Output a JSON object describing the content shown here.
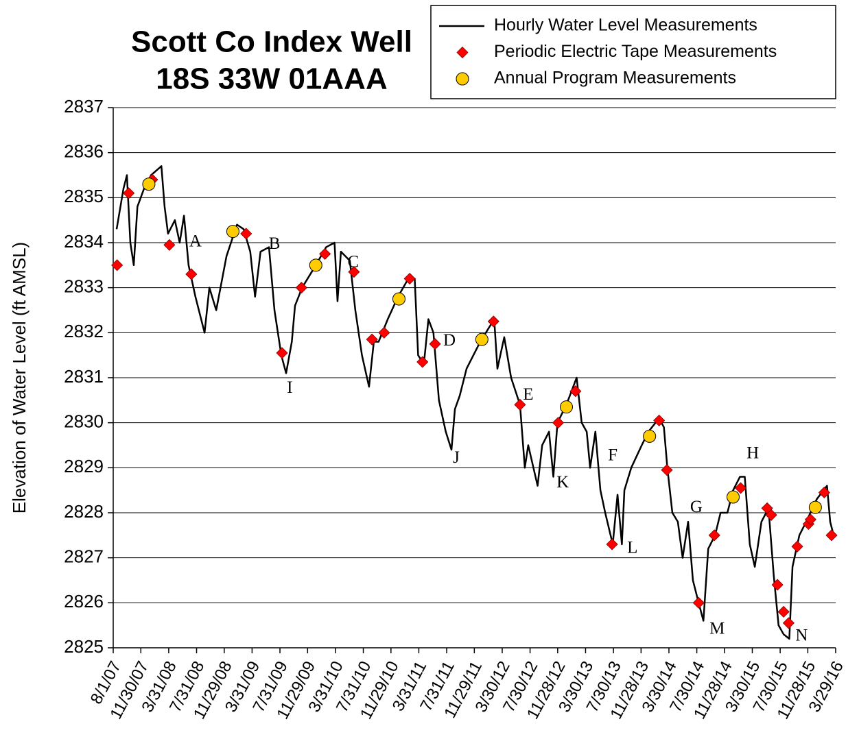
{
  "chart_data": {
    "type": "line",
    "title": [
      "Scott Co Index Well",
      "18S 33W 01AAA"
    ],
    "y_label": "Elevation of Water Level (ft AMSL)",
    "ylim": [
      2825,
      2837
    ],
    "yticks": [
      2825,
      2826,
      2827,
      2828,
      2829,
      2830,
      2831,
      2832,
      2833,
      2834,
      2835,
      2836,
      2837
    ],
    "xlim": [
      "2007-08-01",
      "2016-03-29"
    ],
    "xticks": [
      {
        "value": "2007-08-01",
        "label": "8/1/07"
      },
      {
        "value": "2007-11-30",
        "label": "11/30/07"
      },
      {
        "value": "2008-03-31",
        "label": "3/31/08"
      },
      {
        "value": "2008-07-31",
        "label": "7/31/08"
      },
      {
        "value": "2008-11-29",
        "label": "11/29/08"
      },
      {
        "value": "2009-03-31",
        "label": "3/31/09"
      },
      {
        "value": "2009-07-31",
        "label": "7/31/09"
      },
      {
        "value": "2009-11-29",
        "label": "11/29/09"
      },
      {
        "value": "2010-03-31",
        "label": "3/31/10"
      },
      {
        "value": "2010-07-31",
        "label": "7/31/10"
      },
      {
        "value": "2010-11-29",
        "label": "11/29/10"
      },
      {
        "value": "2011-03-31",
        "label": "3/31/11"
      },
      {
        "value": "2011-07-31",
        "label": "7/31/11"
      },
      {
        "value": "2011-11-29",
        "label": "11/29/11"
      },
      {
        "value": "2012-03-30",
        "label": "3/30/12"
      },
      {
        "value": "2012-07-30",
        "label": "7/30/12"
      },
      {
        "value": "2012-11-28",
        "label": "11/28/12"
      },
      {
        "value": "2013-03-30",
        "label": "3/30/13"
      },
      {
        "value": "2013-07-30",
        "label": "7/30/13"
      },
      {
        "value": "2013-11-28",
        "label": "11/28/13"
      },
      {
        "value": "2014-03-30",
        "label": "3/30/14"
      },
      {
        "value": "2014-07-30",
        "label": "7/30/14"
      },
      {
        "value": "2014-11-28",
        "label": "11/28/14"
      },
      {
        "value": "2015-03-30",
        "label": "3/30/15"
      },
      {
        "value": "2015-07-30",
        "label": "7/30/15"
      },
      {
        "value": "2015-11-28",
        "label": "11/28/15"
      },
      {
        "value": "2016-03-29",
        "label": "3/29/16"
      }
    ],
    "grid": true,
    "legend": "top-right",
    "series": [
      {
        "name": "Hourly Water Level Measurements",
        "color": "#000000",
        "marker": "line",
        "x": [
          "2007-08-16",
          "2007-09-15",
          "2007-09-30",
          "2007-10-15",
          "2007-10-30",
          "2007-11-15",
          "2007-12-14",
          "2008-01-14",
          "2008-02-28",
          "2008-03-13",
          "2008-03-28",
          "2008-04-27",
          "2008-05-18",
          "2008-06-06",
          "2008-06-26",
          "2008-07-26",
          "2008-09-04",
          "2008-09-25",
          "2008-10-25",
          "2008-12-09",
          "2009-01-24",
          "2009-02-22",
          "2009-03-23",
          "2009-04-13",
          "2009-05-07",
          "2009-06-13",
          "2009-07-07",
          "2009-08-06",
          "2009-08-27",
          "2009-09-21",
          "2009-10-05",
          "2009-11-05",
          "2010-01-04",
          "2010-02-18",
          "2010-03-27",
          "2010-04-09",
          "2010-04-24",
          "2010-06-02",
          "2010-06-26",
          "2010-07-25",
          "2010-08-25",
          "2010-09-15",
          "2010-10-06",
          "2010-11-15",
          "2010-12-30",
          "2011-02-13",
          "2011-03-13",
          "2011-03-28",
          "2011-04-22",
          "2011-05-12",
          "2011-06-03",
          "2011-06-27",
          "2011-07-27",
          "2011-08-21",
          "2011-09-05",
          "2011-09-26",
          "2011-10-26",
          "2011-12-25",
          "2012-02-24",
          "2012-03-09",
          "2012-04-08",
          "2012-05-08",
          "2012-06-16",
          "2012-07-07",
          "2012-07-22",
          "2012-09-01",
          "2012-09-21",
          "2012-10-21",
          "2012-11-09",
          "2012-11-27",
          "2013-01-05",
          "2013-02-19",
          "2013-03-13",
          "2013-04-04",
          "2013-04-19",
          "2013-05-12",
          "2013-06-03",
          "2013-06-24",
          "2013-07-27",
          "2013-08-17",
          "2013-09-05",
          "2013-09-16",
          "2013-10-16",
          "2013-12-01",
          "2013-12-30",
          "2014-02-15",
          "2014-03-08",
          "2014-03-23",
          "2014-04-14",
          "2014-05-08",
          "2014-05-29",
          "2014-06-22",
          "2014-07-13",
          "2014-08-07",
          "2014-08-28",
          "2014-09-18",
          "2014-10-18",
          "2014-11-11",
          "2014-12-11",
          "2015-01-05",
          "2015-02-04",
          "2015-02-25",
          "2015-03-19",
          "2015-04-10",
          "2015-05-09",
          "2015-06-09",
          "2015-07-02",
          "2015-07-23",
          "2015-08-14",
          "2015-09-08",
          "2015-09-22",
          "2015-10-22",
          "2015-11-21",
          "2016-01-06",
          "2016-02-20",
          "2016-03-05",
          "2016-03-20"
        ],
        "values": [
          2834.3,
          2835.2,
          2835.5,
          2834.0,
          2833.5,
          2834.8,
          2835.2,
          2835.5,
          2835.7,
          2834.8,
          2834.2,
          2834.5,
          2834.0,
          2834.6,
          2833.5,
          2832.8,
          2832.0,
          2833.0,
          2832.5,
          2833.7,
          2834.4,
          2834.3,
          2833.8,
          2832.8,
          2833.8,
          2833.9,
          2832.5,
          2831.5,
          2831.1,
          2831.8,
          2832.6,
          2833.0,
          2833.5,
          2833.9,
          2834.0,
          2832.7,
          2833.8,
          2833.6,
          2832.5,
          2831.5,
          2830.8,
          2831.8,
          2831.8,
          2832.3,
          2832.8,
          2833.2,
          2833.2,
          2831.5,
          2831.3,
          2832.3,
          2832.0,
          2830.5,
          2829.8,
          2829.4,
          2830.3,
          2830.6,
          2831.2,
          2831.8,
          2832.3,
          2831.2,
          2831.9,
          2831.0,
          2830.4,
          2829.0,
          2829.5,
          2828.6,
          2829.5,
          2829.8,
          2828.8,
          2830.0,
          2830.4,
          2831.0,
          2830.0,
          2829.8,
          2829.0,
          2829.8,
          2828.5,
          2828.0,
          2827.3,
          2828.4,
          2827.3,
          2828.5,
          2829.0,
          2829.5,
          2829.8,
          2830.1,
          2829.9,
          2829.0,
          2828.0,
          2827.8,
          2827.0,
          2827.8,
          2826.5,
          2826.0,
          2825.6,
          2827.2,
          2827.5,
          2828.0,
          2828.0,
          2828.5,
          2828.8,
          2828.8,
          2827.3,
          2826.8,
          2827.8,
          2828.1,
          2826.6,
          2825.5,
          2825.3,
          2825.2,
          2826.8,
          2827.5,
          2827.8,
          2828.3,
          2828.6,
          2827.8,
          2827.5
        ]
      },
      {
        "name": "Periodic Electric Tape Measurements",
        "color": "#ff0000",
        "marker": "diamond",
        "x": [
          "2007-08-18",
          "2007-10-08",
          "2008-01-19",
          "2008-04-03",
          "2008-07-08",
          "2009-03-05",
          "2009-08-09",
          "2009-11-02",
          "2010-02-13",
          "2010-06-20",
          "2010-09-07",
          "2010-10-30",
          "2011-02-19",
          "2011-04-16",
          "2011-06-10",
          "2012-02-21",
          "2012-06-16",
          "2012-11-30",
          "2013-02-14",
          "2013-07-24",
          "2014-02-15",
          "2014-03-21",
          "2014-08-07",
          "2014-10-15",
          "2015-02-07",
          "2015-06-03",
          "2015-06-21",
          "2015-07-18",
          "2015-08-14",
          "2015-09-05",
          "2015-10-13",
          "2015-12-01",
          "2015-12-10",
          "2016-02-08",
          "2016-03-11"
        ],
        "values": [
          2833.5,
          2835.1,
          2835.4,
          2833.95,
          2833.3,
          2834.2,
          2831.55,
          2833.0,
          2833.75,
          2833.35,
          2831.85,
          2832.0,
          2833.2,
          2831.35,
          2831.75,
          2832.25,
          2830.4,
          2830.0,
          2830.7,
          2827.3,
          2830.05,
          2828.95,
          2826.0,
          2827.5,
          2828.55,
          2828.1,
          2827.95,
          2826.4,
          2825.8,
          2825.55,
          2827.25,
          2827.75,
          2827.85,
          2828.45,
          2827.5
        ]
      },
      {
        "name": "Annual Program Measurements",
        "color": "#ffcc00",
        "marker": "circle",
        "x": [
          "2008-01-04",
          "2009-01-06",
          "2010-01-04",
          "2011-01-03",
          "2012-01-01",
          "2013-01-05",
          "2014-01-04",
          "2015-01-05",
          "2015-12-31"
        ],
        "values": [
          2835.3,
          2834.25,
          2833.5,
          2832.75,
          2831.85,
          2830.35,
          2829.7,
          2828.35,
          2828.12
        ]
      }
    ],
    "annotations": [
      {
        "text": "A",
        "x": "2008-07-26",
        "y": 2834.0
      },
      {
        "text": "B",
        "x": "2009-07-07",
        "y": 2833.95
      },
      {
        "text": "C",
        "x": "2010-06-17",
        "y": 2833.55
      },
      {
        "text": "D",
        "x": "2011-08-12",
        "y": 2831.8
      },
      {
        "text": "E",
        "x": "2012-07-22",
        "y": 2830.6
      },
      {
        "text": "F",
        "x": "2013-07-27",
        "y": 2829.25
      },
      {
        "text": "G",
        "x": "2014-07-28",
        "y": 2828.1
      },
      {
        "text": "H",
        "x": "2015-04-01",
        "y": 2829.3
      },
      {
        "text": "I",
        "x": "2009-09-12",
        "y": 2830.75
      },
      {
        "text": "J",
        "x": "2011-09-11",
        "y": 2829.2
      },
      {
        "text": "K",
        "x": "2012-12-20",
        "y": 2828.65
      },
      {
        "text": "L",
        "x": "2013-10-21",
        "y": 2827.2
      },
      {
        "text": "M",
        "x": "2014-10-27",
        "y": 2825.4
      },
      {
        "text": "N",
        "x": "2015-11-01",
        "y": 2825.25
      }
    ]
  }
}
